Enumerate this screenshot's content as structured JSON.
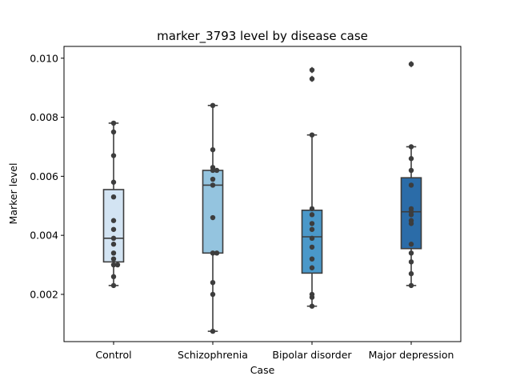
{
  "chart_data": {
    "type": "box",
    "title": "marker_3793 level by disease case",
    "xlabel": "Case",
    "ylabel": "Marker level",
    "ylim": [
      0.0004,
      0.0104
    ],
    "yticks": [
      "0.002",
      "0.004",
      "0.006",
      "0.008",
      "0.010"
    ],
    "ytick_values": [
      0.002,
      0.004,
      0.006,
      0.008,
      0.01
    ],
    "grid": false,
    "categories": [
      "Control",
      "Schizophrenia",
      "Bipolar disorder",
      "Major depression"
    ],
    "colors": [
      "#d3e4f3",
      "#94c4df",
      "#4a98c9",
      "#2b6ca8"
    ],
    "edge_color": "#3d3d3d",
    "point_color": "#3d3d3d",
    "boxes": [
      {
        "category": "Control",
        "whisker_low": 0.0023,
        "q1": 0.0031,
        "median": 0.0039,
        "q3": 0.00555,
        "whisker_high": 0.0078,
        "outliers": []
      },
      {
        "category": "Schizophrenia",
        "whisker_low": 0.00075,
        "q1": 0.0034,
        "median": 0.0057,
        "q3": 0.0062,
        "whisker_high": 0.0084,
        "outliers": []
      },
      {
        "category": "Bipolar disorder",
        "whisker_low": 0.0016,
        "q1": 0.00272,
        "median": 0.00395,
        "q3": 0.00485,
        "whisker_high": 0.0074,
        "outliers": [
          0.0093,
          0.0096
        ]
      },
      {
        "category": "Major depression",
        "whisker_low": 0.0023,
        "q1": 0.00355,
        "median": 0.0048,
        "q3": 0.00595,
        "whisker_high": 0.007,
        "outliers": [
          0.0098
        ]
      }
    ],
    "points": [
      [
        0.0078,
        0.0075,
        0.0067,
        0.0058,
        0.0053,
        0.0045,
        0.0042,
        0.0039,
        0.0037,
        0.0034,
        0.0032,
        0.003,
        0.003,
        0.0026,
        0.0023
      ],
      [
        0.0084,
        0.0069,
        0.0063,
        0.0062,
        0.0062,
        0.0059,
        0.0057,
        0.0046,
        0.0034,
        0.0034,
        0.0024,
        0.002,
        0.00075
      ],
      [
        0.0096,
        0.0093,
        0.0074,
        0.0049,
        0.0047,
        0.0044,
        0.0042,
        0.0039,
        0.0036,
        0.0032,
        0.0029,
        0.002,
        0.0019,
        0.0016
      ],
      [
        0.0098,
        0.007,
        0.0066,
        0.0062,
        0.0057,
        0.0049,
        0.0048,
        0.0047,
        0.0045,
        0.0044,
        0.0037,
        0.0034,
        0.0031,
        0.0027,
        0.0023
      ]
    ]
  }
}
